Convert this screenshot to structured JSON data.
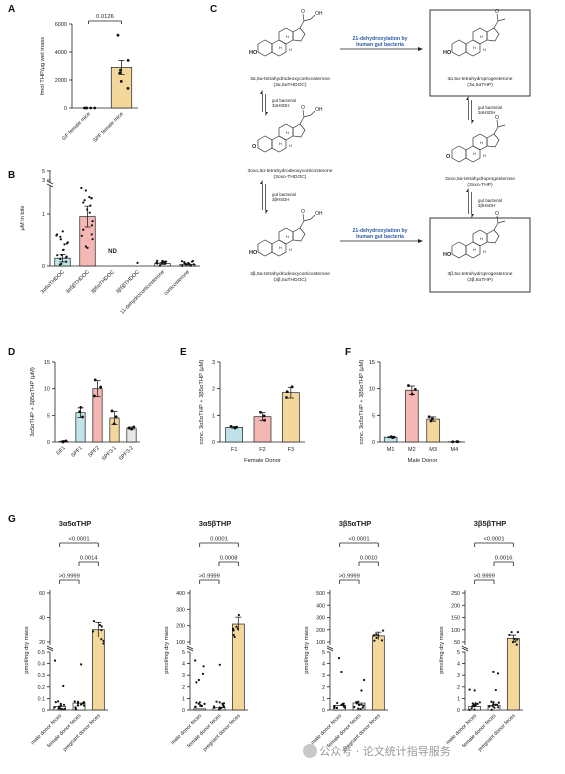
{
  "panels": {
    "A": "A",
    "B": "B",
    "C": "C",
    "D": "D",
    "E": "E",
    "F": "F",
    "G": "G"
  },
  "pathway": {
    "top_left": "3α,5α-tetrahydrodeoxycorticosterone",
    "top_left_abbr": "(3α,5αTHDOC)",
    "mid_left": "3oxo,5α-tetrahydrodeoxycorticosterone",
    "mid_left_abbr": "(3oxo-THDOC)",
    "bottom_left": "3β,5α-tetrahydrodeoxycorticosterone",
    "bottom_left_abbr": "(3β,5αTHDOC)",
    "top_right": "3α,5α-tetrahydroprogesterone",
    "top_right_abbr": "(3α,5αTHP)",
    "mid_right": "3oxo,5α-tetrahydroprogesterone",
    "mid_right_abbr": "(3oxo-THP)",
    "bottom_right": "3β,5α-tetrahydroprogesterone",
    "bottom_right_abbr": "(3β,5αTHP)",
    "reaction_line1": "21-dehydroxylation by",
    "reaction_line2": "human gut bacteria",
    "enzyme_a_line1": "gut bacterial",
    "enzyme_a_line2": "3αHSDH",
    "enzyme_b_line1": "gut bacterial",
    "enzyme_b_line2": "3βHSDH",
    "label_ho": "HO",
    "label_o": "O",
    "label_oh": "OH",
    "label_h": "H"
  },
  "watermark": "公众号 · 论文统计指导服务",
  "chart_data": [
    {
      "panel": "A",
      "type": "bar",
      "ylabel": "fmol THP/μg wet mass",
      "categories": [
        "GF female mice",
        "SPF female mice"
      ],
      "values": [
        0,
        2900
      ],
      "errors": [
        0,
        500
      ],
      "points": [
        [
          0,
          0,
          0,
          0,
          0
        ],
        [
          5200,
          3400,
          2700,
          2500,
          1900,
          1400
        ]
      ],
      "colors": [
        "#ffffff",
        "#f3d79b"
      ],
      "ylim": [
        0,
        6000
      ],
      "yticks": [
        "0",
        "2000",
        "4000",
        "6000"
      ],
      "annotations": [
        "0.0126"
      ]
    },
    {
      "panel": "B",
      "type": "bar",
      "ylabel": "μM in bile",
      "categories": [
        "3α5αTHDOC",
        "3α5βTHDOC",
        "3β5αTHDOC",
        "3β5βTHDOC",
        "11-dehydrocorticosterone",
        "corticosterone"
      ],
      "values": [
        0.15,
        0.95,
        0,
        0,
        0.05,
        0.03
      ],
      "errors": [
        0.07,
        0.2,
        0,
        0,
        0.02,
        0.01
      ],
      "colors": [
        "#bfe3e8",
        "#f4b7b4",
        "#ffffff",
        "#ffffff",
        "#ffffff",
        "#ffffff"
      ],
      "yticks": [
        "0",
        "1",
        "3",
        "5"
      ],
      "annotations": [
        "ND"
      ]
    },
    {
      "panel": "D",
      "type": "bar",
      "ylabel": "3α5αTHP + 3β5αTHP (μM)",
      "categories": [
        "GF1",
        "SPF1",
        "SPF2",
        "SPF3-1",
        "SPF3-2"
      ],
      "values": [
        0.1,
        5.5,
        10,
        4.5,
        2.6
      ],
      "errors": [
        0.1,
        0.9,
        1.5,
        1.2,
        0.2
      ],
      "colors": [
        "#ffffff",
        "#bfe3e8",
        "#f4b7b4",
        "#f3d79b",
        "#e8e8e8"
      ],
      "ylim": [
        0,
        15
      ],
      "yticks": [
        "0",
        "5",
        "10",
        "15"
      ]
    },
    {
      "panel": "E",
      "type": "bar",
      "ylabel": "conc. 3α5αTHP + 3β5αTHP (μM)",
      "xlabel": "Female Donor",
      "categories": [
        "F1",
        "F2",
        "F3"
      ],
      "values": [
        0.55,
        0.95,
        1.85
      ],
      "errors": [
        0.03,
        0.15,
        0.2
      ],
      "colors": [
        "#bfe3e8",
        "#f4b7b4",
        "#f3d79b"
      ],
      "ylim": [
        0,
        3
      ],
      "yticks": [
        "0",
        "1",
        "2",
        "3"
      ]
    },
    {
      "panel": "F",
      "type": "bar",
      "ylabel": "conc. 3α5αTHP + 3β5αTHP (μM)",
      "xlabel": "Male Donor",
      "categories": [
        "M1",
        "M2",
        "M3",
        "M4"
      ],
      "values": [
        0.9,
        9.7,
        4.3,
        0.05
      ],
      "errors": [
        0.1,
        0.8,
        0.4,
        0.02
      ],
      "colors": [
        "#bfe3e8",
        "#f4b7b4",
        "#f3d79b",
        "#ffffff"
      ],
      "ylim": [
        0,
        15
      ],
      "yticks": [
        "0",
        "5",
        "10",
        "15"
      ]
    },
    {
      "panel": "G1",
      "type": "bar",
      "title": "3α5αTHP",
      "ylabel": "pmol/mg dry mass",
      "categories": [
        "male donor feces",
        "female donor feces",
        "pregnant donor feces"
      ],
      "values": [
        0.03,
        0.06,
        30
      ],
      "yticks": [
        "0",
        "0.1",
        "0.2",
        "0.3",
        "0.4",
        "0.5",
        "20",
        "40",
        "60"
      ],
      "annotations": [
        "<0.0001",
        ">0.9999",
        "0.0014"
      ]
    },
    {
      "panel": "G2",
      "type": "bar",
      "title": "3α5βTHP",
      "ylabel": "pmol/mg dry mass",
      "categories": [
        "male donor feces",
        "female donor feces",
        "pregnant donor feces"
      ],
      "values": [
        0.1,
        0.2,
        210
      ],
      "yticks": [
        "0",
        "1",
        "2",
        "3",
        "4",
        "5",
        "100",
        "200",
        "300",
        "400"
      ],
      "annotations": [
        "0.0001",
        ">0.9999",
        "0.0008"
      ]
    },
    {
      "panel": "G3",
      "type": "bar",
      "title": "3β5αTHP",
      "ylabel": "pmol/mg dry mass",
      "categories": [
        "male donor feces",
        "female donor feces",
        "pregnant donor feces"
      ],
      "values": [
        0.4,
        0.6,
        150
      ],
      "yticks": [
        "0",
        "1",
        "2",
        "3",
        "4",
        "5",
        "100",
        "200",
        "300",
        "400",
        "500"
      ],
      "annotations": [
        "<0.0001",
        ">0.9999",
        "0.0010"
      ]
    },
    {
      "panel": "G4",
      "type": "bar",
      "title": "3β5βTHP",
      "ylabel": "pmol/mg dry mass",
      "categories": [
        "male donor feces",
        "female donor feces",
        "pregnant donor feces"
      ],
      "values": [
        0.3,
        0.4,
        65
      ],
      "yticks": [
        "0",
        "1",
        "2",
        "3",
        "4",
        "5",
        "50",
        "100",
        "150",
        "200",
        "250"
      ],
      "annotations": [
        "<0.0001",
        ">0.9999",
        "0.0016"
      ]
    }
  ]
}
